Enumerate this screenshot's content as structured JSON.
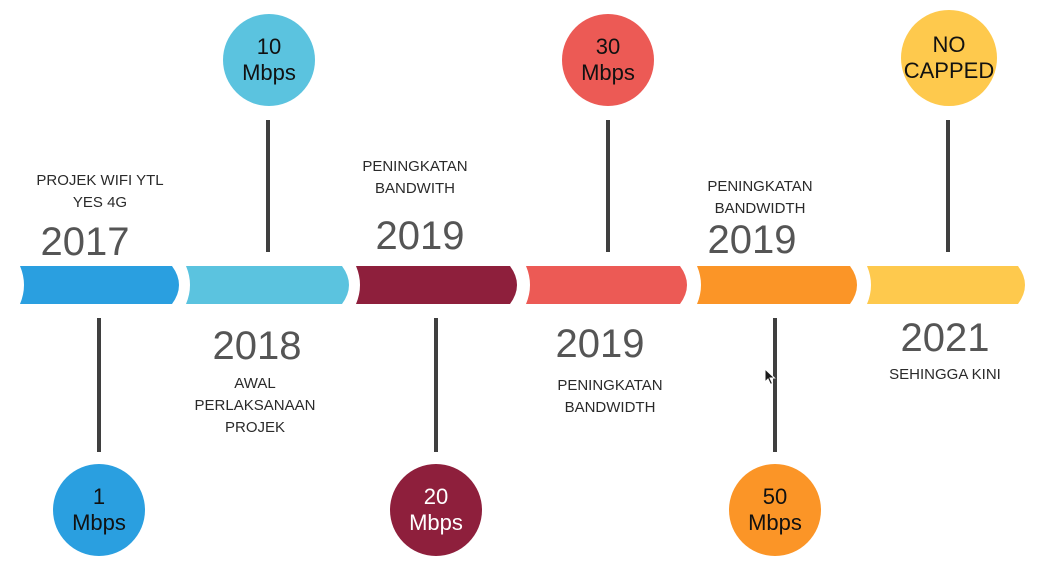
{
  "colors": {
    "seg1": "#2a9fe0",
    "seg2": "#5bc3df",
    "seg3": "#8e1f3c",
    "seg4": "#ec5a55",
    "seg5": "#fb9527",
    "seg6": "#fec94d",
    "connector": "#3f3f3f"
  },
  "milestones": [
    {
      "year": "2017",
      "caption_lines": [
        "PROJEK WIFI YTL",
        "YES 4G"
      ],
      "bubble_lines": [
        "1",
        "Mbps"
      ]
    },
    {
      "year": "2018",
      "caption_lines": [
        "AWAL",
        "PERLAKSANAAN",
        "PROJEK"
      ],
      "bubble_lines": [
        "10",
        "Mbps"
      ]
    },
    {
      "year": "2019",
      "caption_lines": [
        "PENINGKATAN",
        "BANDWITH"
      ],
      "bubble_lines": [
        "20",
        "Mbps"
      ]
    },
    {
      "year": "2019",
      "caption_lines": [
        "PENINGKATAN",
        "BANDWIDTH"
      ],
      "bubble_lines": [
        "30",
        "Mbps"
      ]
    },
    {
      "year": "2019",
      "caption_lines": [
        "PENINGKATAN",
        "BANDWIDTH"
      ],
      "bubble_lines": [
        "50",
        "Mbps"
      ]
    },
    {
      "year": "2021",
      "caption_lines": [
        "SEHINGGA KINI"
      ],
      "bubble_lines": [
        "NO",
        "CAPPED"
      ]
    }
  ]
}
